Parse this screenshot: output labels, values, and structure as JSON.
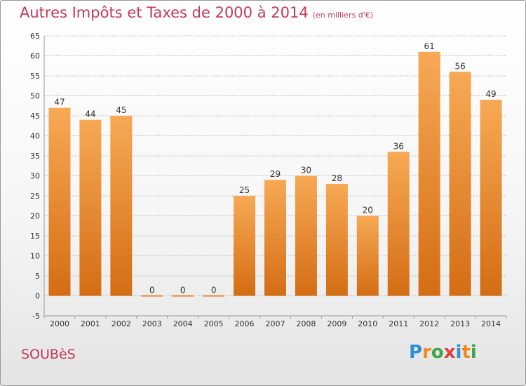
{
  "title": "Autres Impôts et Taxes de 2000 à 2014",
  "unit_note": "(en milliers d'€)",
  "commune": "SOUBèS",
  "logo_letters": [
    "P",
    "r",
    "o",
    "x",
    "i",
    "t",
    "i"
  ],
  "logo_colors": [
    "#2f8fd6",
    "#f08a1c",
    "#3aa64a",
    "#e0403a",
    "#2f8fd6",
    "#f08a1c",
    "#3aa64a"
  ],
  "colors": {
    "bar_light": "#f7a955",
    "bar_dark": "#d46d14",
    "title": "#c23a5a",
    "grid": "#bdbdbd"
  },
  "chart_data": {
    "type": "bar",
    "categories": [
      "2000",
      "2001",
      "2002",
      "2003",
      "2004",
      "2005",
      "2006",
      "2007",
      "2008",
      "2009",
      "2010",
      "2011",
      "2012",
      "2013",
      "2014"
    ],
    "values": [
      47,
      44,
      45,
      0,
      0,
      0,
      25,
      29,
      30,
      28,
      20,
      36,
      61,
      56,
      49
    ],
    "ylim": [
      -5,
      65
    ],
    "yticks": [
      -5,
      0,
      5,
      10,
      15,
      20,
      25,
      30,
      35,
      40,
      45,
      50,
      55,
      60,
      65
    ],
    "grid": true,
    "xlabel": "",
    "ylabel": ""
  }
}
